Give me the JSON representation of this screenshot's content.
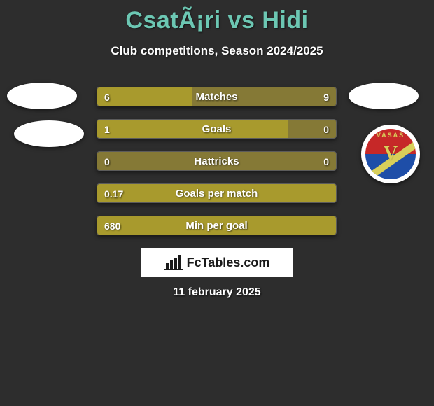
{
  "title": "CsatÃ¡ri vs Hidi",
  "subtitle": "Club competitions, Season 2024/2025",
  "date_text": "11 february 2025",
  "brand": {
    "name": "FcTables.com"
  },
  "crest": {
    "top_text": "VASAS",
    "letter": "V",
    "top_color": "#c62828",
    "bottom_color": "#1e4ea8",
    "accent_color": "#d8cf5a"
  },
  "colors": {
    "title": "#6cc7b3",
    "background": "#2d2d2d",
    "bar_olive": "#a89a2d",
    "bar_faded": "#857936",
    "text": "#ffffff"
  },
  "bars": [
    {
      "label": "Matches",
      "left_v": "6",
      "right_v": "9",
      "left_pct": 40,
      "right_pct": 60,
      "left_color": "#a89a2d",
      "right_color": "#857936"
    },
    {
      "label": "Goals",
      "left_v": "1",
      "right_v": "0",
      "left_pct": 80,
      "right_pct": 20,
      "left_color": "#a89a2d",
      "right_color": "#857936"
    },
    {
      "label": "Hattricks",
      "left_v": "0",
      "right_v": "0",
      "left_pct": 50,
      "right_pct": 50,
      "left_color": "#857936",
      "right_color": "#857936"
    },
    {
      "label": "Goals per match",
      "left_v": "0.17",
      "right_v": "",
      "left_pct": 100,
      "right_pct": 0,
      "left_color": "#a89a2d",
      "right_color": "#857936"
    },
    {
      "label": "Min per goal",
      "left_v": "680",
      "right_v": "",
      "left_pct": 100,
      "right_pct": 0,
      "left_color": "#a89a2d",
      "right_color": "#857936"
    }
  ]
}
